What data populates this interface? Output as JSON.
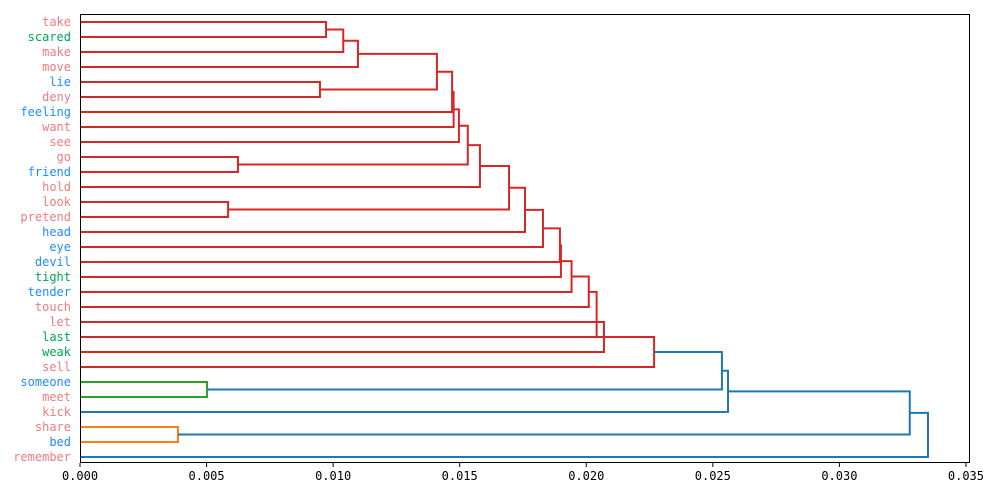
{
  "chart_data": {
    "type": "dendrogram",
    "orientation": "left",
    "title": "",
    "xlabel": "",
    "ylabel": "",
    "xlim": [
      0,
      0.03516
    ],
    "xticks": [
      0.0,
      0.005,
      0.01,
      0.015,
      0.02,
      0.025,
      0.03,
      0.035
    ],
    "xtick_labels": [
      "0.000",
      "0.005",
      "0.010",
      "0.015",
      "0.020",
      "0.025",
      "0.030",
      "0.035"
    ],
    "grid": false,
    "label_colors": {
      "pink": "#f07c7c",
      "green": "#00a651",
      "blue": "#1e8cff"
    },
    "cluster_colors": {
      "red": "#d62728",
      "green": "#2ca02c",
      "orange": "#ff7f0e",
      "blue": "#1f77b4"
    },
    "leaves": [
      {
        "label": "take",
        "color": "pink"
      },
      {
        "label": "scared",
        "color": "green"
      },
      {
        "label": "make",
        "color": "pink"
      },
      {
        "label": "move",
        "color": "pink"
      },
      {
        "label": "lie",
        "color": "blue"
      },
      {
        "label": "deny",
        "color": "pink"
      },
      {
        "label": "feeling",
        "color": "blue"
      },
      {
        "label": "want",
        "color": "pink"
      },
      {
        "label": "see",
        "color": "pink"
      },
      {
        "label": "go",
        "color": "pink"
      },
      {
        "label": "friend",
        "color": "blue"
      },
      {
        "label": "hold",
        "color": "pink"
      },
      {
        "label": "look",
        "color": "pink"
      },
      {
        "label": "pretend",
        "color": "pink"
      },
      {
        "label": "head",
        "color": "blue"
      },
      {
        "label": "eye",
        "color": "blue"
      },
      {
        "label": "devil",
        "color": "blue"
      },
      {
        "label": "tight",
        "color": "green"
      },
      {
        "label": "tender",
        "color": "blue"
      },
      {
        "label": "touch",
        "color": "pink"
      },
      {
        "label": "let",
        "color": "pink"
      },
      {
        "label": "last",
        "color": "green"
      },
      {
        "label": "weak",
        "color": "green"
      },
      {
        "label": "sell",
        "color": "pink"
      },
      {
        "label": "someone",
        "color": "blue"
      },
      {
        "label": "meet",
        "color": "pink"
      },
      {
        "label": "kick",
        "color": "pink"
      },
      {
        "label": "share",
        "color": "pink"
      },
      {
        "label": "bed",
        "color": "blue"
      },
      {
        "label": "remember",
        "color": "pink"
      }
    ],
    "links": [
      {
        "a": [
          0,
          0
        ],
        "b": [
          1,
          0
        ],
        "h": 0.00972,
        "c": "red"
      },
      {
        "a": [
          0.5,
          0.00972
        ],
        "b": [
          2,
          0
        ],
        "h": 0.0104,
        "c": "red"
      },
      {
        "a": [
          1.25,
          0.0104
        ],
        "b": [
          3,
          0
        ],
        "h": 0.01098,
        "c": "red"
      },
      {
        "a": [
          4,
          0
        ],
        "b": [
          5,
          0
        ],
        "h": 0.00948,
        "c": "red"
      },
      {
        "a": [
          2.125,
          0.01098
        ],
        "b": [
          4.5,
          0.00948
        ],
        "h": 0.0141,
        "c": "red"
      },
      {
        "a": [
          3.3125,
          0.0141
        ],
        "b": [
          6,
          0
        ],
        "h": 0.0147,
        "c": "red"
      },
      {
        "a": [
          4.656,
          0.0147
        ],
        "b": [
          7,
          0
        ],
        "h": 0.01476,
        "c": "red"
      },
      {
        "a": [
          5.828,
          0.01476
        ],
        "b": [
          8,
          0
        ],
        "h": 0.01497,
        "c": "red"
      },
      {
        "a": [
          9,
          0
        ],
        "b": [
          10,
          0
        ],
        "h": 0.00624,
        "c": "red"
      },
      {
        "a": [
          6.914,
          0.01497
        ],
        "b": [
          9.5,
          0.00624
        ],
        "h": 0.01532,
        "c": "red"
      },
      {
        "a": [
          8.207,
          0.01532
        ],
        "b": [
          11,
          0
        ],
        "h": 0.0158,
        "c": "red"
      },
      {
        "a": [
          12,
          0
        ],
        "b": [
          13,
          0
        ],
        "h": 0.00585,
        "c": "red"
      },
      {
        "a": [
          9.604,
          0.0158
        ],
        "b": [
          12.5,
          0.00585
        ],
        "h": 0.01695,
        "c": "red"
      },
      {
        "a": [
          11.05,
          0.01695
        ],
        "b": [
          14,
          0
        ],
        "h": 0.01758,
        "c": "red"
      },
      {
        "a": [
          12.526,
          0.01758
        ],
        "b": [
          15,
          0
        ],
        "h": 0.01829,
        "c": "red"
      },
      {
        "a": [
          13.76,
          0.01829
        ],
        "b": [
          16,
          0
        ],
        "h": 0.01896,
        "c": "red"
      },
      {
        "a": [
          14.88,
          0.01896
        ],
        "b": [
          17,
          0
        ],
        "h": 0.019,
        "c": "red"
      },
      {
        "a": [
          15.94,
          0.019
        ],
        "b": [
          18,
          0
        ],
        "h": 0.01942,
        "c": "red"
      },
      {
        "a": [
          16.97,
          0.01942
        ],
        "b": [
          19,
          0
        ],
        "h": 0.0201,
        "c": "red"
      },
      {
        "a": [
          17.99,
          0.0201
        ],
        "b": [
          21,
          0
        ],
        "h": 0.02041,
        "c": "red"
      },
      {
        "a": [
          20,
          0
        ],
        "b": [
          22,
          0
        ],
        "h": 0.0207,
        "c": "red"
      },
      {
        "a": [
          21,
          0.02041
        ],
        "b": [
          23,
          0
        ],
        "h": 0.02268,
        "c": "red"
      },
      {
        "a": [
          24,
          0
        ],
        "b": [
          25,
          0
        ],
        "h": 0.00502,
        "c": "green"
      },
      {
        "a": [
          22,
          0.02268
        ],
        "b": [
          24.5,
          0.00502
        ],
        "h": 0.02536,
        "c": "blue"
      },
      {
        "a": [
          23.25,
          0.02536
        ],
        "b": [
          26,
          0
        ],
        "h": 0.0256,
        "c": "blue"
      },
      {
        "a": [
          27,
          0
        ],
        "b": [
          28,
          0
        ],
        "h": 0.00387,
        "c": "orange"
      },
      {
        "a": [
          24.625,
          0.0256
        ],
        "b": [
          27.5,
          0.00387
        ],
        "h": 0.03278,
        "c": "blue"
      },
      {
        "a": [
          26.06,
          0.03278
        ],
        "b": [
          29,
          0
        ],
        "h": 0.0335,
        "c": "blue"
      }
    ]
  }
}
